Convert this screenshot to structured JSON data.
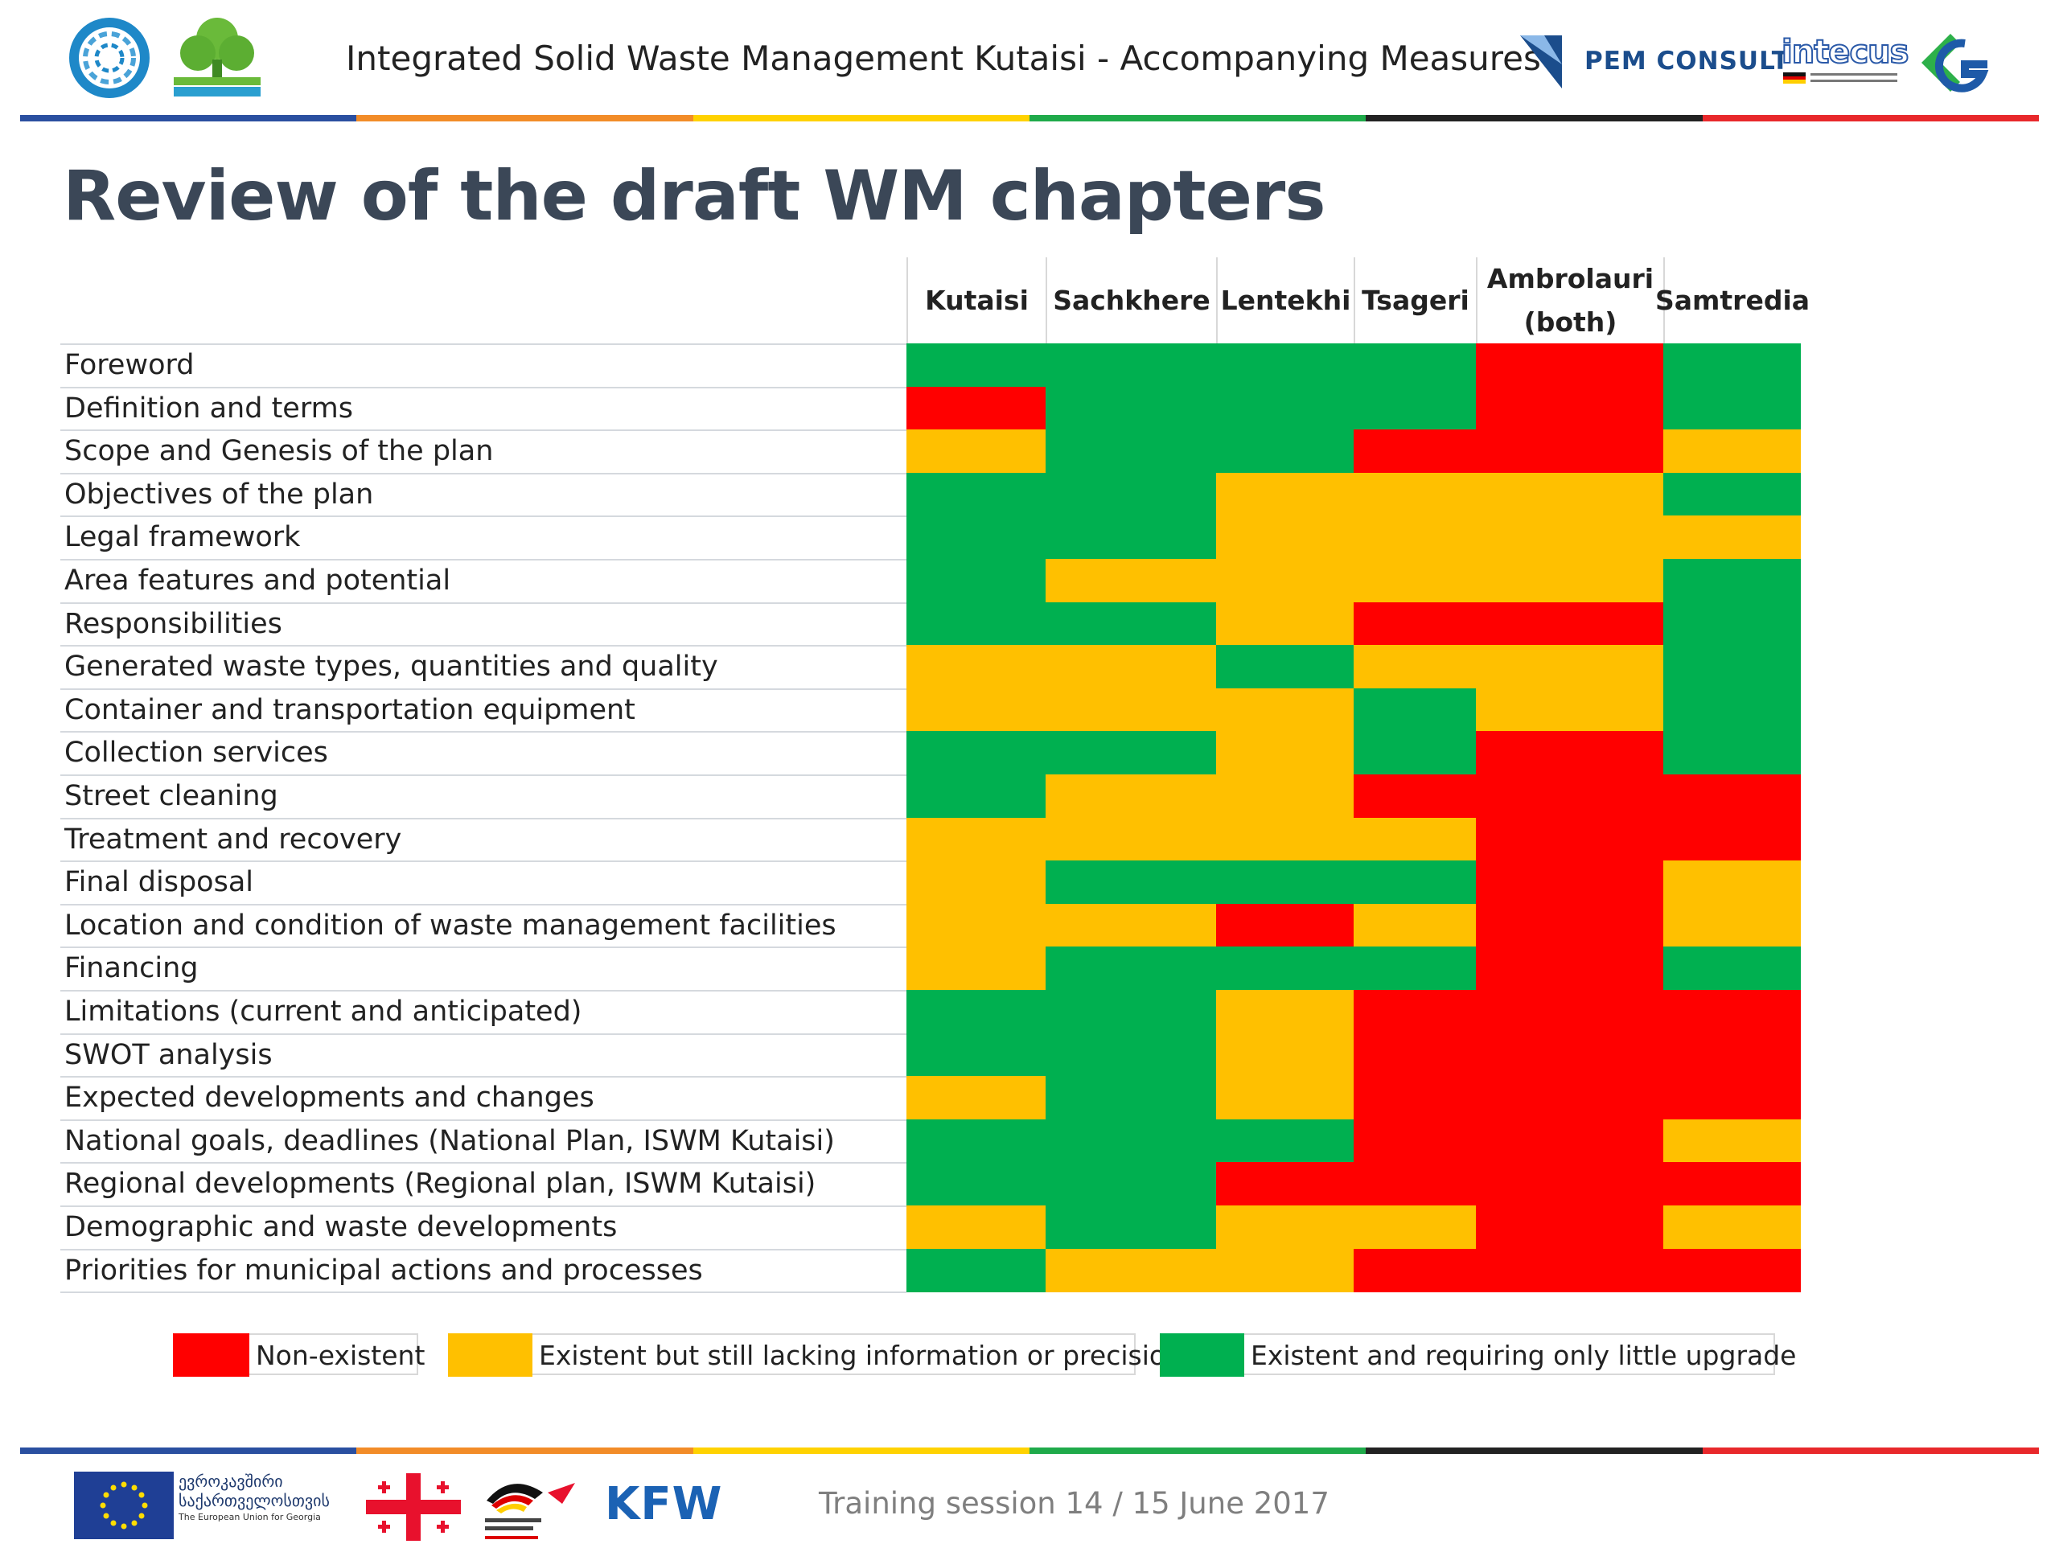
{
  "header": {
    "title": "Integrated Solid Waste Management Kutaisi - Accompanying Measures",
    "partner_pem": "PEM CONSULT",
    "partner_intecus": "intecus"
  },
  "slide": {
    "title": "Review of the draft WM chapters"
  },
  "colors": {
    "red": "#ff0000",
    "yellow": "#ffc000",
    "green": "#00b050",
    "title": "#3b4757",
    "stripe": [
      "#2a4fa0",
      "#f28c28",
      "#ffd200",
      "#1faa4a",
      "#222222",
      "#e8282b"
    ]
  },
  "table": {
    "columns": [
      "Kutaisi",
      "Sachkhere",
      "Lentekhi",
      "Tsageri",
      "Ambrolauri (both)",
      "Samtredia"
    ],
    "rows": [
      {
        "label": "Foreword",
        "ratings": [
          "G",
          "G",
          "G",
          "G",
          "R",
          "G"
        ]
      },
      {
        "label": "Definition and terms",
        "ratings": [
          "R",
          "G",
          "G",
          "G",
          "R",
          "G"
        ]
      },
      {
        "label": "Scope and Genesis of the plan",
        "ratings": [
          "Y",
          "G",
          "G",
          "R",
          "R",
          "Y"
        ]
      },
      {
        "label": "Objectives of the plan",
        "ratings": [
          "G",
          "G",
          "Y",
          "Y",
          "Y",
          "G"
        ]
      },
      {
        "label": "Legal framework",
        "ratings": [
          "G",
          "G",
          "Y",
          "Y",
          "Y",
          "Y"
        ]
      },
      {
        "label": "Area features and potential",
        "ratings": [
          "G",
          "Y",
          "Y",
          "Y",
          "Y",
          "G"
        ]
      },
      {
        "label": "Responsibilities",
        "ratings": [
          "G",
          "G",
          "Y",
          "R",
          "R",
          "G"
        ]
      },
      {
        "label": "Generated waste types, quantities and quality",
        "ratings": [
          "Y",
          "Y",
          "G",
          "Y",
          "Y",
          "G"
        ]
      },
      {
        "label": "Container and transportation equipment",
        "ratings": [
          "Y",
          "Y",
          "Y",
          "G",
          "Y",
          "G"
        ]
      },
      {
        "label": "Collection services",
        "ratings": [
          "G",
          "G",
          "Y",
          "G",
          "R",
          "G"
        ]
      },
      {
        "label": "Street cleaning",
        "ratings": [
          "G",
          "Y",
          "Y",
          "R",
          "R",
          "R"
        ]
      },
      {
        "label": "Treatment and recovery",
        "ratings": [
          "Y",
          "Y",
          "Y",
          "Y",
          "R",
          "R"
        ]
      },
      {
        "label": "Final disposal",
        "ratings": [
          "Y",
          "G",
          "G",
          "G",
          "R",
          "Y"
        ]
      },
      {
        "label": "Location and condition of waste management facilities",
        "ratings": [
          "Y",
          "Y",
          "R",
          "Y",
          "R",
          "Y"
        ]
      },
      {
        "label": "Financing",
        "ratings": [
          "Y",
          "G",
          "G",
          "G",
          "R",
          "G"
        ]
      },
      {
        "label": "Limitations (current and anticipated)",
        "ratings": [
          "G",
          "G",
          "Y",
          "R",
          "R",
          "R"
        ]
      },
      {
        "label": "SWOT analysis",
        "ratings": [
          "G",
          "G",
          "Y",
          "R",
          "R",
          "R"
        ]
      },
      {
        "label": "Expected developments and changes",
        "ratings": [
          "Y",
          "G",
          "Y",
          "R",
          "R",
          "R"
        ]
      },
      {
        "label": "National goals, deadlines (National Plan, ISWM Kutaisi)",
        "ratings": [
          "G",
          "G",
          "G",
          "R",
          "R",
          "Y"
        ]
      },
      {
        "label": "Regional developments (Regional plan, ISWM Kutaisi)",
        "ratings": [
          "G",
          "G",
          "R",
          "R",
          "R",
          "R"
        ]
      },
      {
        "label": "Demographic and waste developments",
        "ratings": [
          "Y",
          "G",
          "Y",
          "Y",
          "R",
          "Y"
        ]
      },
      {
        "label": "Priorities for municipal actions and processes",
        "ratings": [
          "G",
          "Y",
          "Y",
          "R",
          "R",
          "R"
        ]
      }
    ]
  },
  "legend": [
    {
      "key": "R",
      "label": "Non-existent"
    },
    {
      "key": "Y",
      "label": "Existent but still lacking information or precision"
    },
    {
      "key": "G",
      "label": "Existent and requiring only little upgrade"
    }
  ],
  "footer": {
    "eu_line1": "ევროკავშირი",
    "eu_line2": "საქართველოსთვის",
    "eu_line3": "The European Union for Georgia",
    "session_text": "Training session 14 / 15 June 2017",
    "kfw": "KFW"
  }
}
